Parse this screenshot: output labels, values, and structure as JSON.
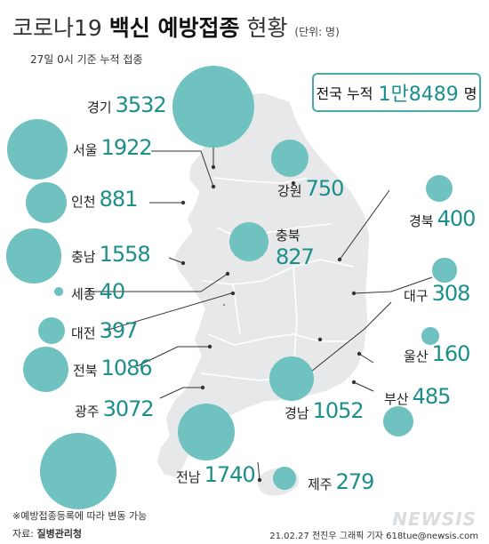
{
  "title_main": "코로나19",
  "title_bold": "백신 예방접종",
  "title_end": "현황",
  "unit": "(단위: 명)",
  "subtitle": "27일 0시 기준 누적 접종",
  "total": {
    "label": "전국 누적",
    "value": "1만8489",
    "unit": "명"
  },
  "regions": [
    {
      "name": "경기",
      "value": "3532",
      "count": 3532
    },
    {
      "name": "서울",
      "value": "1922",
      "count": 1922
    },
    {
      "name": "인천",
      "value": "881",
      "count": 881
    },
    {
      "name": "충남",
      "value": "1558",
      "count": 1558
    },
    {
      "name": "세종",
      "value": "40",
      "count": 40
    },
    {
      "name": "대전",
      "value": "397",
      "count": 397
    },
    {
      "name": "전북",
      "value": "1086",
      "count": 1086
    },
    {
      "name": "광주",
      "value": "3072",
      "count": 3072
    },
    {
      "name": "전남",
      "value": "1740",
      "count": 1740
    },
    {
      "name": "강원",
      "value": "750",
      "count": 750
    },
    {
      "name": "충북",
      "value": "827",
      "count": 827
    },
    {
      "name": "경북",
      "value": "400",
      "count": 400
    },
    {
      "name": "대구",
      "value": "308",
      "count": 308
    },
    {
      "name": "울산",
      "value": "160",
      "count": 160
    },
    {
      "name": "부산",
      "value": "485",
      "count": 485
    },
    {
      "name": "경남",
      "value": "1052",
      "count": 1052
    },
    {
      "name": "제주",
      "value": "279",
      "count": 279
    }
  ],
  "colors": {
    "bubble": "#6fc2c0",
    "accent": "#1d8f8b",
    "map_land": "#e6e8ea"
  },
  "footnote": "※예방접종등록에 따라 변동 가능",
  "source_label": "자료:",
  "source_name": "질병관리청",
  "credit": "21.02.27 전진우 그래픽 기자 618tue@newsis.com",
  "watermark": "NEWSIS"
}
